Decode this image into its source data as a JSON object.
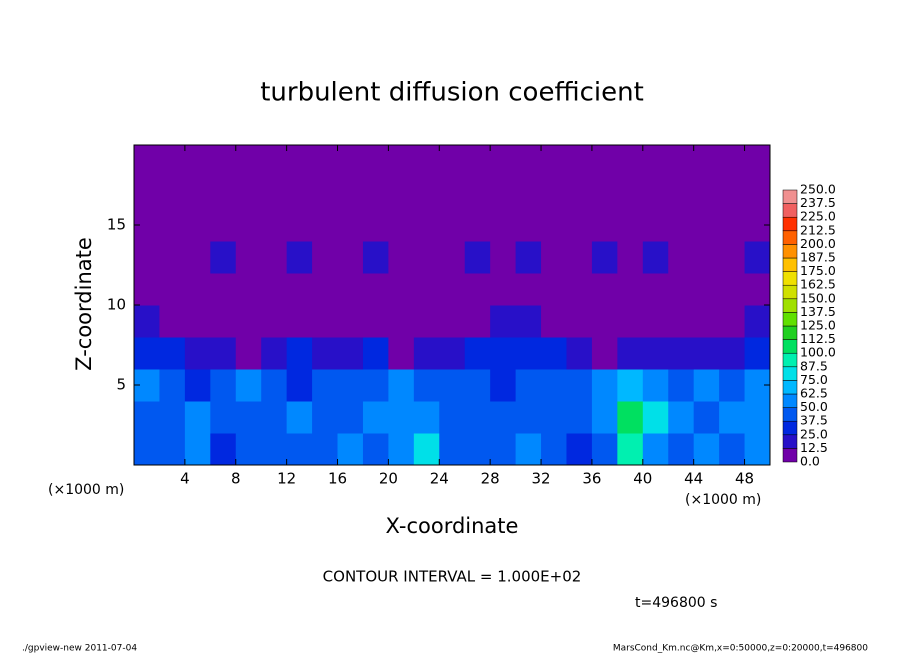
{
  "chart_data": {
    "type": "heatmap",
    "title": "turbulent diffusion coefficient",
    "x_label": "X-coordinate",
    "y_label": "Z-coordinate",
    "x_unit": "(×1000 m)",
    "xlim": [
      0,
      50
    ],
    "xticks": [
      4,
      8,
      12,
      16,
      20,
      24,
      28,
      32,
      36,
      40,
      44,
      48
    ],
    "ylim": [
      0,
      20
    ],
    "yticks": [
      5,
      10,
      15
    ],
    "z": [
      [
        40,
        45,
        50,
        35,
        40,
        45,
        40,
        45,
        50,
        45,
        55,
        75,
        45,
        40,
        45,
        50,
        40,
        35,
        45,
        90,
        60,
        45,
        50,
        45,
        55
      ],
      [
        45,
        40,
        50,
        45,
        40,
        45,
        50,
        45,
        45,
        50,
        55,
        50,
        40,
        45,
        40,
        45,
        45,
        40,
        55,
        100,
        75,
        50,
        45,
        50,
        60
      ],
      [
        50,
        40,
        35,
        45,
        55,
        40,
        35,
        40,
        45,
        45,
        50,
        45,
        40,
        40,
        35,
        40,
        40,
        45,
        60,
        70,
        55,
        45,
        50,
        45,
        50
      ],
      [
        30,
        25,
        20,
        15,
        10,
        20,
        25,
        20,
        20,
        25,
        10,
        15,
        20,
        25,
        30,
        30,
        25,
        20,
        10,
        15,
        20,
        15,
        15,
        20,
        35
      ],
      [
        20,
        10,
        5,
        3,
        3,
        3,
        3,
        3,
        5,
        5,
        5,
        3,
        5,
        10,
        20,
        15,
        10,
        5,
        3,
        3,
        5,
        3,
        3,
        5,
        15
      ],
      [
        8,
        5,
        5,
        3,
        3,
        5,
        3,
        5,
        3,
        5,
        3,
        5,
        3,
        5,
        5,
        5,
        3,
        5,
        3,
        5,
        5,
        3,
        5,
        3,
        8
      ],
      [
        10,
        8,
        5,
        15,
        5,
        10,
        15,
        5,
        8,
        15,
        5,
        10,
        8,
        15,
        12,
        15,
        8,
        5,
        15,
        8,
        15,
        5,
        8,
        5,
        15
      ],
      [
        5,
        3,
        3,
        5,
        3,
        5,
        3,
        3,
        5,
        3,
        3,
        5,
        5,
        3,
        5,
        8,
        5,
        3,
        5,
        3,
        3,
        3,
        3,
        3,
        5
      ],
      [
        2,
        2,
        2,
        2,
        2,
        2,
        2,
        2,
        2,
        2,
        2,
        2,
        2,
        2,
        2,
        2,
        2,
        2,
        2,
        2,
        2,
        2,
        2,
        2,
        2
      ],
      [
        2,
        2,
        2,
        2,
        2,
        2,
        2,
        2,
        2,
        2,
        2,
        2,
        2,
        2,
        2,
        2,
        2,
        2,
        2,
        2,
        2,
        2,
        2,
        2,
        2
      ]
    ],
    "levels": [
      {
        "value": 0,
        "label": "0.0"
      },
      12.5,
      {
        "value": 25,
        "label": "25.0"
      },
      37.5,
      {
        "value": 50,
        "label": "50.0"
      },
      62.5,
      {
        "value": 75,
        "label": "75.0"
      },
      87.5,
      {
        "value": 100,
        "label": "100.0"
      },
      112.5,
      {
        "value": 125,
        "label": "125.0"
      },
      137.5,
      {
        "value": 150,
        "label": "150.0"
      },
      162.5,
      {
        "value": 175,
        "label": "175.0"
      },
      187.5,
      {
        "value": 200,
        "label": "200.0"
      },
      212.5,
      {
        "value": 225,
        "label": "225.0"
      },
      237.5,
      {
        "value": 250,
        "label": "250.0"
      }
    ],
    "colors": [
      "#7000a8",
      "#2810c8",
      "#0028e0",
      "#0058f0",
      "#0088ff",
      "#00b8ff",
      "#00e0e8",
      "#00f0b0",
      "#00e060",
      "#20d020",
      "#60e000",
      "#a0e000",
      "#d0e000",
      "#f0e000",
      "#ffc000",
      "#ff9000",
      "#ff6000",
      "#ff3000",
      "#f06060",
      "#f09090"
    ],
    "contour_interval": "CONTOUR INTERVAL = 1.000E+02",
    "time_label": "t=496800 s",
    "footer_left": "./gpview-new  2011-07-04",
    "footer_right": "MarsCond_Km.nc@Km,x=0:50000,z=0:20000,t=496800"
  }
}
